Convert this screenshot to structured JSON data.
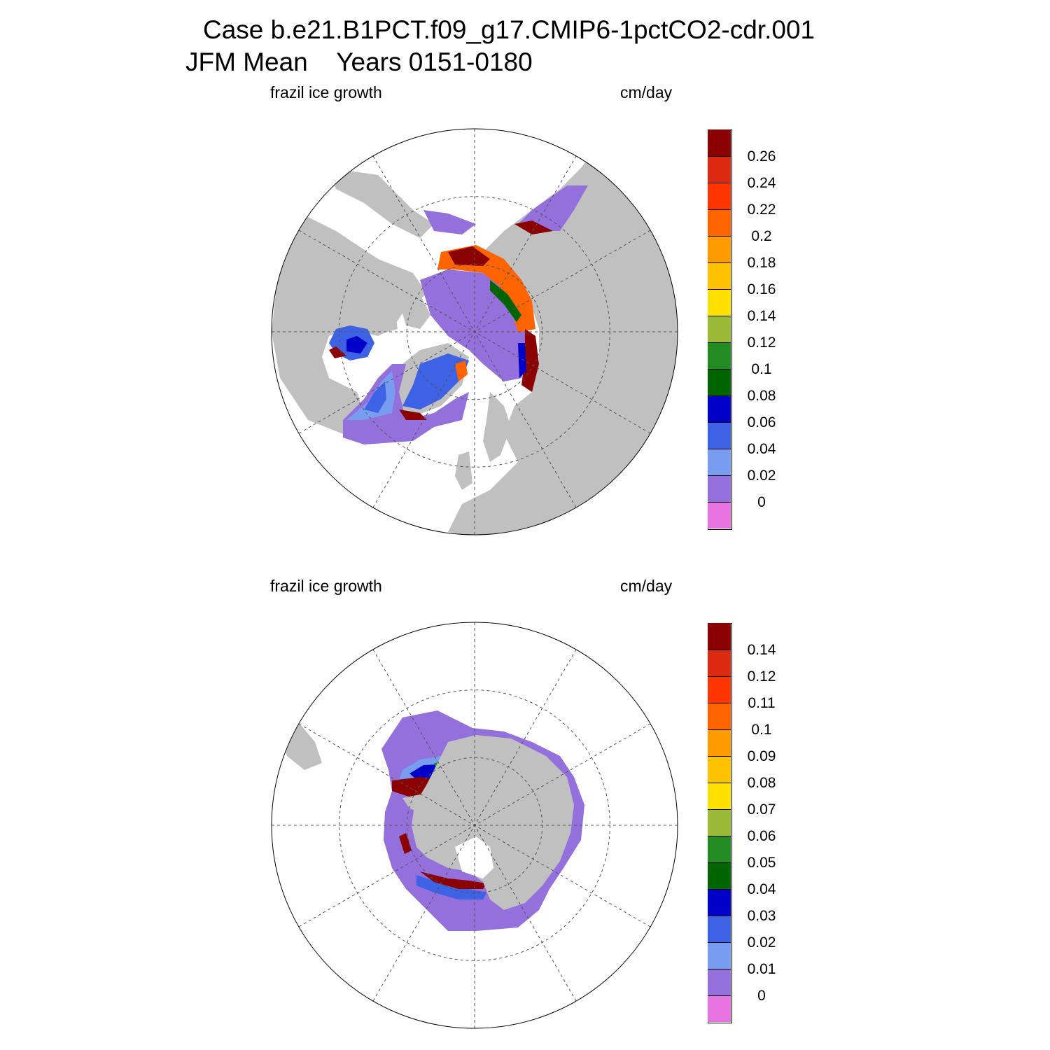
{
  "title": {
    "line1": "Case b.e21.B1PCT.f09_g17.CMIP6-1pctCO2-cdr.001",
    "line2": "JFM Mean    Years 0151-0180"
  },
  "colors": {
    "land": "#c0c0c0",
    "ocean_no_data": "#ffffff",
    "grid": "#555555",
    "palette": [
      "#e673e0",
      "#9370db",
      "#789cf0",
      "#3d62e6",
      "#0000c8",
      "#006400",
      "#228b22",
      "#9aba37",
      "#ffe000",
      "#ffc200",
      "#ff9a00",
      "#ff6400",
      "#ff3500",
      "#dc2a10",
      "#8b0000"
    ]
  },
  "panels": [
    {
      "id": "north",
      "hemisphere": "Northern",
      "variable_label": "frazil ice growth",
      "units_label": "cm/day",
      "colorbar_levels": [
        "0",
        "0.02",
        "0.04",
        "0.06",
        "0.08",
        "0.1",
        "0.12",
        "0.14",
        "0.16",
        "0.18",
        "0.2",
        "0.22",
        "0.24",
        "0.26"
      ]
    },
    {
      "id": "south",
      "hemisphere": "Southern",
      "variable_label": "frazil ice growth",
      "units_label": "cm/day",
      "colorbar_levels": [
        "0",
        "0.01",
        "0.02",
        "0.03",
        "0.04",
        "0.05",
        "0.06",
        "0.07",
        "0.08",
        "0.09",
        "0.1",
        "0.11",
        "0.12",
        "0.14"
      ]
    }
  ]
}
